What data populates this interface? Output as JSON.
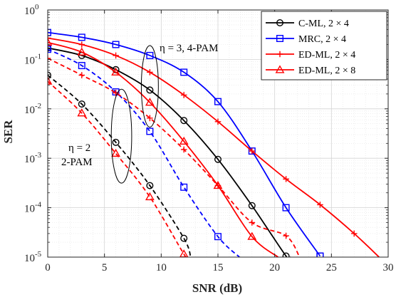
{
  "chart_data": {
    "type": "line",
    "xlabel": "SNR (dB)",
    "ylabel": "SER",
    "xlim": [
      0,
      30
    ],
    "ylim": [
      1e-05,
      1
    ],
    "yscale": "log",
    "grid": true,
    "legend_position": "top-right",
    "x_ticks": [
      "0",
      "5",
      "10",
      "15",
      "20",
      "25",
      "30"
    ],
    "y_ticks": [
      {
        "value": 1,
        "base": "10",
        "exp": "0"
      },
      {
        "value": 0.1,
        "base": "10",
        "exp": "-1"
      },
      {
        "value": 0.01,
        "base": "10",
        "exp": "-2"
      },
      {
        "value": 0.001,
        "base": "10",
        "exp": "-3"
      },
      {
        "value": 0.0001,
        "base": "10",
        "exp": "-4"
      },
      {
        "value": 1e-05,
        "base": "10",
        "exp": "-5"
      }
    ],
    "series": [
      {
        "name": "C-ML, 2 × 4",
        "group": "4-PAM",
        "color": "#000000",
        "marker": "circle",
        "dash": "solid",
        "x": [
          0,
          3,
          6,
          9,
          12,
          15,
          18,
          21,
          21.4
        ],
        "y": [
          0.17,
          0.12,
          0.062,
          0.024,
          0.0058,
          0.00095,
          0.00011,
          1.05e-05,
          1e-05
        ]
      },
      {
        "name": "MRC, 2 × 4",
        "group": "4-PAM",
        "color": "#0000ff",
        "marker": "square",
        "dash": "solid",
        "x": [
          0,
          3,
          6,
          9,
          12,
          15,
          18,
          21,
          24
        ],
        "y": [
          0.35,
          0.28,
          0.2,
          0.12,
          0.055,
          0.014,
          0.0014,
          0.0001,
          1.05e-05
        ]
      },
      {
        "name": "ED-ML, 2 × 4",
        "group": "4-PAM",
        "color": "#ff0000",
        "marker": "plus",
        "dash": "solid",
        "x": [
          0,
          3,
          6,
          9,
          12,
          15,
          18,
          21,
          24,
          27,
          29.2
        ],
        "y": [
          0.27,
          0.2,
          0.12,
          0.055,
          0.019,
          0.0055,
          0.0014,
          0.00038,
          0.000115,
          3e-05,
          1e-05
        ]
      },
      {
        "name": "ED-ML, 2 × 8",
        "group": "4-PAM",
        "color": "#ff0000",
        "marker": "triangle",
        "dash": "solid",
        "x": [
          0,
          3,
          6,
          9,
          12,
          15,
          18,
          20.3
        ],
        "y": [
          0.22,
          0.14,
          0.055,
          0.0135,
          0.0022,
          0.00028,
          2.6e-05,
          1e-05
        ]
      },
      {
        "name": "",
        "group": "2-PAM",
        "color": "#000000",
        "marker": "circle",
        "dash": "dashed",
        "x": [
          0,
          3,
          6,
          9,
          12,
          12.6
        ],
        "y": [
          0.048,
          0.0125,
          0.0021,
          0.00028,
          2.4e-05,
          1e-05
        ]
      },
      {
        "name": "",
        "group": "2-PAM",
        "color": "#0000ff",
        "marker": "square",
        "dash": "dashed",
        "x": [
          0,
          3,
          6,
          9,
          12,
          15,
          16.9
        ],
        "y": [
          0.16,
          0.075,
          0.022,
          0.0035,
          0.00026,
          2.6e-05,
          1e-05
        ]
      },
      {
        "name": "",
        "group": "2-PAM",
        "color": "#ff0000",
        "marker": "plus",
        "dash": "dashed",
        "x": [
          0,
          3,
          6,
          9,
          12,
          15,
          18,
          21,
          22.2
        ],
        "y": [
          0.105,
          0.048,
          0.021,
          0.0065,
          0.0015,
          0.00028,
          5e-05,
          2.7e-05,
          1e-05
        ]
      },
      {
        "name": "",
        "group": "2-PAM",
        "color": "#ff0000",
        "marker": "triangle",
        "dash": "dashed",
        "x": [
          0,
          3,
          6,
          9,
          12,
          12.3
        ],
        "y": [
          0.036,
          0.0082,
          0.00125,
          0.000165,
          1.15e-05,
          1e-05
        ]
      }
    ],
    "annotations": [
      {
        "id": "pam4",
        "text": "η = 3, 4-PAM",
        "ellipse_center": [
          9,
          0.024
        ],
        "ellipse_span_db": 1.5,
        "ellipse_decades": [
          -0.75,
          0.9
        ]
      },
      {
        "id": "pam2",
        "text_line1": "η = 2",
        "text_line2": "2-PAM",
        "ellipse_center": [
          6.5,
          0.0028
        ],
        "ellipse_span_db": 1.8,
        "ellipse_decades": [
          -0.95,
          0.95
        ]
      }
    ]
  }
}
